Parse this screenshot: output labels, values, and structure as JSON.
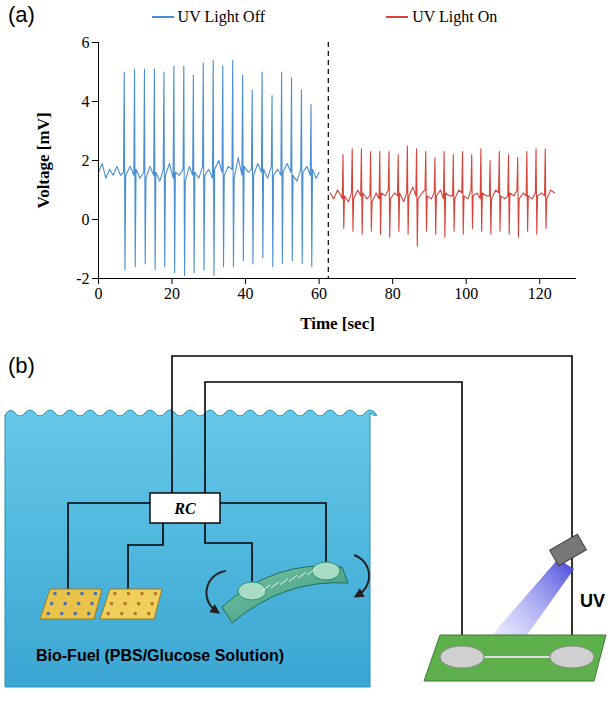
{
  "chart_data": {
    "type": "line",
    "title": "(a)",
    "x_label": "Time [sec]",
    "y_label": "Voltage [mV]",
    "xlim": [
      0,
      130
    ],
    "xticks": [
      0,
      20,
      40,
      60,
      80,
      100,
      120
    ],
    "ylim": [
      -2,
      6
    ],
    "yticks": [
      -2,
      0,
      2,
      4,
      6
    ],
    "legend": "top",
    "divider_x": 62.5,
    "series": [
      {
        "name": "UV Light Off",
        "color": "#4a8fd4",
        "line_style": "solid",
        "x": [
          0,
          1,
          2,
          3,
          4,
          5,
          6,
          6.8,
          7.0,
          7.2,
          7.4,
          8.6,
          9.6,
          9.8,
          10.0,
          10.2,
          11.3,
          12.3,
          12.5,
          12.7,
          12.9,
          14.0,
          15.0,
          15.2,
          15.4,
          15.6,
          16.7,
          17.6,
          17.8,
          18.0,
          18.2,
          19.3,
          20.3,
          20.5,
          20.7,
          20.9,
          22.0,
          23.0,
          23.2,
          23.4,
          23.6,
          24.7,
          25.6,
          25.8,
          26.0,
          26.2,
          27.3,
          28.3,
          28.5,
          28.7,
          28.9,
          30.0,
          31.0,
          31.2,
          31.4,
          31.6,
          32.7,
          33.6,
          33.8,
          34.0,
          34.2,
          35.3,
          36.3,
          36.5,
          36.7,
          36.9,
          38.0,
          39.0,
          39.2,
          39.4,
          39.6,
          40.7,
          41.6,
          41.8,
          42.0,
          42.2,
          43.3,
          44.3,
          44.5,
          44.7,
          44.9,
          46.0,
          47.0,
          47.2,
          47.4,
          47.6,
          48.7,
          49.6,
          49.8,
          50.0,
          50.2,
          51.3,
          52.3,
          52.5,
          52.7,
          52.9,
          54.0,
          55.0,
          55.2,
          55.4,
          55.6,
          56.7,
          57.6,
          57.8,
          58.0,
          58.2,
          59.2,
          60.0
        ],
        "values": [
          1.6,
          1.9,
          1.4,
          1.7,
          1.5,
          1.8,
          1.5,
          1.6,
          5.0,
          -1.7,
          1.5,
          1.8,
          1.5,
          5.1,
          -1.6,
          1.7,
          1.4,
          1.6,
          5.1,
          -1.5,
          1.4,
          1.8,
          1.5,
          5.1,
          -1.7,
          1.6,
          1.3,
          1.7,
          5.0,
          -1.6,
          1.5,
          1.9,
          1.4,
          5.2,
          -1.8,
          1.6,
          1.5,
          1.7,
          5.2,
          -1.9,
          1.3,
          1.8,
          1.5,
          4.9,
          -1.8,
          1.6,
          1.4,
          1.8,
          5.3,
          -1.7,
          1.5,
          1.7,
          1.4,
          5.4,
          -1.9,
          1.7,
          2.0,
          1.6,
          5.2,
          -1.6,
          1.5,
          1.8,
          1.7,
          5.4,
          -1.6,
          1.4,
          2.1,
          1.5,
          4.9,
          -1.4,
          1.8,
          1.6,
          1.7,
          4.4,
          -1.5,
          1.5,
          1.9,
          1.6,
          5.0,
          -1.3,
          1.7,
          1.4,
          1.8,
          4.2,
          -1.6,
          1.5,
          1.7,
          1.5,
          5.0,
          -1.5,
          1.6,
          1.9,
          1.6,
          4.8,
          -1.4,
          1.5,
          1.3,
          1.7,
          4.4,
          -1.5,
          1.6,
          1.8,
          1.5,
          3.9,
          -1.6,
          1.7,
          1.4,
          1.6
        ]
      },
      {
        "name": "UV Light On",
        "color": "#d9443a",
        "line_style": "solid",
        "x": [
          63.0,
          64.0,
          65.0,
          66.0,
          66.3,
          66.5,
          66.7,
          66.9,
          68.0,
          68.8,
          69.0,
          69.2,
          69.4,
          70.5,
          71.3,
          71.5,
          71.7,
          71.9,
          73.0,
          73.8,
          74.0,
          74.2,
          74.4,
          75.5,
          76.3,
          76.5,
          76.7,
          76.9,
          78.0,
          78.8,
          79.0,
          79.2,
          79.4,
          80.5,
          81.3,
          81.5,
          81.7,
          81.9,
          83.0,
          83.8,
          84.0,
          84.2,
          84.4,
          85.5,
          86.3,
          86.5,
          86.7,
          86.9,
          88.0,
          88.8,
          89.0,
          89.2,
          89.4,
          90.5,
          91.3,
          91.5,
          91.7,
          91.9,
          93.0,
          93.8,
          94.0,
          94.2,
          94.4,
          95.5,
          96.3,
          96.5,
          96.7,
          96.9,
          98.0,
          98.8,
          99.0,
          99.2,
          99.4,
          100.5,
          101.3,
          101.5,
          101.7,
          101.9,
          103.0,
          103.8,
          104.0,
          104.2,
          104.4,
          105.5,
          106.3,
          106.5,
          106.7,
          106.9,
          108.0,
          108.8,
          109.0,
          109.2,
          109.4,
          110.5,
          111.3,
          111.5,
          111.7,
          111.9,
          113.0,
          113.8,
          114.0,
          114.2,
          114.4,
          115.5,
          116.3,
          116.5,
          116.7,
          116.9,
          118.0,
          118.8,
          119.0,
          119.2,
          119.4,
          120.5,
          121.3,
          121.5,
          121.7,
          121.9,
          123.0,
          124.0
        ],
        "values": [
          0.9,
          0.7,
          1.0,
          0.8,
          0.7,
          2.2,
          -0.3,
          0.8,
          0.6,
          0.9,
          2.4,
          -0.4,
          0.7,
          1.0,
          0.8,
          2.4,
          -0.5,
          0.9,
          0.7,
          0.8,
          2.3,
          -0.4,
          0.6,
          0.9,
          0.7,
          2.3,
          -0.5,
          0.9,
          0.8,
          1.0,
          2.3,
          -0.6,
          0.7,
          0.9,
          0.8,
          2.2,
          -0.4,
          0.9,
          0.6,
          0.9,
          2.5,
          -0.5,
          0.8,
          1.1,
          0.8,
          2.4,
          -0.9,
          0.7,
          0.9,
          1.0,
          2.3,
          -0.4,
          0.8,
          0.7,
          0.9,
          2.1,
          -0.5,
          0.8,
          1.0,
          0.7,
          2.3,
          -0.6,
          0.9,
          0.8,
          0.8,
          2.2,
          -0.4,
          0.7,
          1.0,
          0.9,
          2.3,
          -0.5,
          0.8,
          0.7,
          1.0,
          2.2,
          -0.3,
          0.8,
          0.9,
          0.7,
          2.4,
          -0.4,
          0.9,
          0.8,
          0.8,
          2.0,
          -0.5,
          0.7,
          1.0,
          0.9,
          2.3,
          -0.4,
          0.8,
          0.7,
          0.8,
          2.2,
          -0.5,
          0.9,
          0.8,
          1.0,
          2.1,
          -0.6,
          0.7,
          0.9,
          0.8,
          2.3,
          -0.4,
          0.8,
          0.7,
          0.9,
          2.4,
          -0.5,
          0.8,
          0.9,
          0.8,
          2.4,
          -0.3,
          0.7,
          1.0,
          0.9
        ]
      }
    ]
  },
  "diagram": {
    "panel": "(b)",
    "labels": {
      "controller": "RC",
      "fuel": "Bio-Fuel (PBS/Glucose Solution)",
      "light": "UV"
    }
  }
}
